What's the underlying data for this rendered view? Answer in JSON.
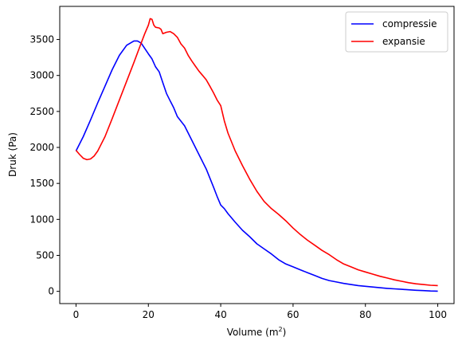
{
  "chart_data": {
    "type": "line",
    "xlabel": "Volume (m",
    "xlabel_sup": "2",
    "xlabel_end": ")",
    "ylabel": "Druk (Pa)",
    "xlim": [
      -4.5,
      104.5
    ],
    "ylim": [
      -170,
      3960
    ],
    "xticks": [
      0,
      20,
      40,
      60,
      80,
      100
    ],
    "yticks": [
      0,
      500,
      1000,
      1500,
      2000,
      2500,
      3000,
      3500
    ],
    "grid": false,
    "legend_position": "upper right",
    "series": [
      {
        "name": "compressie",
        "color": "#0000ff",
        "points": [
          [
            0,
            1950
          ],
          [
            2,
            2150
          ],
          [
            4,
            2380
          ],
          [
            6,
            2620
          ],
          [
            8,
            2850
          ],
          [
            10,
            3080
          ],
          [
            12,
            3280
          ],
          [
            14,
            3420
          ],
          [
            16,
            3480
          ],
          [
            17,
            3480
          ],
          [
            18,
            3450
          ],
          [
            20,
            3300
          ],
          [
            21,
            3230
          ],
          [
            22,
            3120
          ],
          [
            23,
            3050
          ],
          [
            24,
            2900
          ],
          [
            25,
            2750
          ],
          [
            26,
            2650
          ],
          [
            27,
            2550
          ],
          [
            28,
            2430
          ],
          [
            30,
            2300
          ],
          [
            32,
            2100
          ],
          [
            34,
            1900
          ],
          [
            36,
            1700
          ],
          [
            38,
            1450
          ],
          [
            39,
            1320
          ],
          [
            40,
            1200
          ],
          [
            41,
            1150
          ],
          [
            42,
            1080
          ],
          [
            44,
            960
          ],
          [
            46,
            850
          ],
          [
            48,
            760
          ],
          [
            50,
            660
          ],
          [
            52,
            590
          ],
          [
            54,
            520
          ],
          [
            56,
            440
          ],
          [
            58,
            380
          ],
          [
            60,
            340
          ],
          [
            62,
            300
          ],
          [
            64,
            260
          ],
          [
            66,
            220
          ],
          [
            68,
            180
          ],
          [
            70,
            150
          ],
          [
            72,
            130
          ],
          [
            74,
            110
          ],
          [
            76,
            95
          ],
          [
            78,
            80
          ],
          [
            80,
            70
          ],
          [
            82,
            60
          ],
          [
            84,
            50
          ],
          [
            86,
            42
          ],
          [
            88,
            35
          ],
          [
            90,
            28
          ],
          [
            92,
            22
          ],
          [
            94,
            15
          ],
          [
            96,
            10
          ],
          [
            98,
            5
          ],
          [
            100,
            3
          ]
        ]
      },
      {
        "name": "expansie",
        "color": "#ff0000",
        "points": [
          [
            0,
            1960
          ],
          [
            1,
            1900
          ],
          [
            2,
            1850
          ],
          [
            3,
            1830
          ],
          [
            4,
            1840
          ],
          [
            5,
            1880
          ],
          [
            6,
            1950
          ],
          [
            8,
            2150
          ],
          [
            10,
            2400
          ],
          [
            12,
            2660
          ],
          [
            14,
            2920
          ],
          [
            16,
            3180
          ],
          [
            18,
            3450
          ],
          [
            19,
            3580
          ],
          [
            20,
            3700
          ],
          [
            20.5,
            3790
          ],
          [
            21,
            3780
          ],
          [
            21.5,
            3700
          ],
          [
            22,
            3670
          ],
          [
            23,
            3660
          ],
          [
            23.5,
            3640
          ],
          [
            24,
            3580
          ],
          [
            25,
            3600
          ],
          [
            26,
            3610
          ],
          [
            27,
            3580
          ],
          [
            28,
            3530
          ],
          [
            29,
            3440
          ],
          [
            30,
            3380
          ],
          [
            31,
            3280
          ],
          [
            32,
            3200
          ],
          [
            33,
            3130
          ],
          [
            34,
            3060
          ],
          [
            35,
            3000
          ],
          [
            36,
            2940
          ],
          [
            37,
            2850
          ],
          [
            38,
            2760
          ],
          [
            39,
            2660
          ],
          [
            40,
            2580
          ],
          [
            41,
            2370
          ],
          [
            42,
            2200
          ],
          [
            44,
            1950
          ],
          [
            46,
            1750
          ],
          [
            48,
            1560
          ],
          [
            50,
            1390
          ],
          [
            52,
            1250
          ],
          [
            54,
            1150
          ],
          [
            56,
            1070
          ],
          [
            58,
            980
          ],
          [
            60,
            880
          ],
          [
            62,
            790
          ],
          [
            64,
            710
          ],
          [
            66,
            640
          ],
          [
            68,
            570
          ],
          [
            70,
            510
          ],
          [
            72,
            440
          ],
          [
            74,
            380
          ],
          [
            76,
            340
          ],
          [
            78,
            300
          ],
          [
            80,
            270
          ],
          [
            82,
            240
          ],
          [
            84,
            210
          ],
          [
            86,
            185
          ],
          [
            88,
            160
          ],
          [
            90,
            140
          ],
          [
            92,
            120
          ],
          [
            94,
            105
          ],
          [
            96,
            95
          ],
          [
            98,
            85
          ],
          [
            100,
            80
          ]
        ]
      }
    ]
  }
}
